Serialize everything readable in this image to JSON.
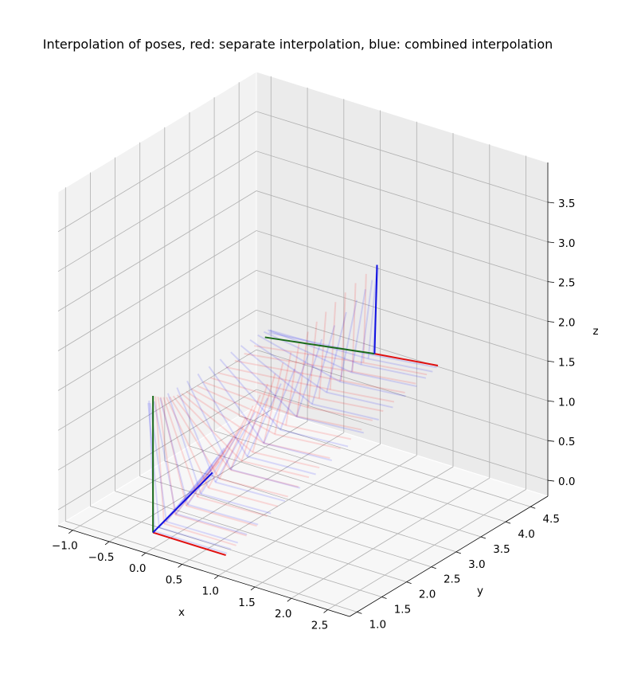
{
  "chart_data": {
    "type": "line",
    "projection": "3d",
    "title": "Interpolation of poses, red: separate interpolation, blue: combined interpolation",
    "xlabel": "x",
    "ylabel": "y",
    "zlabel": "z",
    "xlim": [
      -1.2,
      2.8
    ],
    "ylim": [
      0.85,
      4.85
    ],
    "zlim": [
      -0.2,
      4.0
    ],
    "xticks": [
      -1.0,
      -0.5,
      0.0,
      0.5,
      1.0,
      1.5,
      2.0,
      2.5
    ],
    "yticks": [
      1.0,
      1.5,
      2.0,
      2.5,
      3.0,
      3.5,
      4.0,
      4.5
    ],
    "zticks": [
      0.0,
      0.5,
      1.0,
      1.5,
      2.0,
      2.5,
      3.0,
      3.5
    ],
    "xtick_labels": [
      "−1.0",
      "−0.5",
      "0.0",
      "0.5",
      "1.0",
      "1.5",
      "2.0",
      "2.5"
    ],
    "ytick_labels": [
      "1.0",
      "1.5",
      "2.0",
      "2.5",
      "3.0",
      "3.5",
      "4.0",
      "4.5"
    ],
    "ztick_labels": [
      "0.0",
      "0.5",
      "1.0",
      "1.5",
      "2.0",
      "2.5",
      "3.0",
      "3.5"
    ],
    "grid": true,
    "start_pose": {
      "origin": [
        0.0,
        1.0,
        0.0
      ],
      "x_axis_end": [
        1.0,
        1.0,
        0.0
      ],
      "y_axis_end": [
        0.0,
        1.0,
        1.72
      ],
      "z_axis_end": [
        0.0,
        2.2,
        0.3
      ]
    },
    "end_pose": {
      "origin": [
        1.0,
        4.0,
        1.4
      ],
      "x_axis_end": [
        1.87,
        4.0,
        1.5
      ],
      "y_axis_end": [
        -0.3,
        3.7,
        1.35
      ],
      "z_axis_end": [
        1.0,
        4.05,
        2.5
      ]
    },
    "series": [
      {
        "name": "red",
        "color": "#ff0000",
        "interpolation": "separate",
        "steps": 21
      },
      {
        "name": "blue",
        "color": "#0000ff",
        "interpolation": "combined",
        "steps": 21
      }
    ],
    "axis_colors": {
      "x": "#e01010",
      "y": "#1a6b1a",
      "z": "#1010e0"
    }
  }
}
